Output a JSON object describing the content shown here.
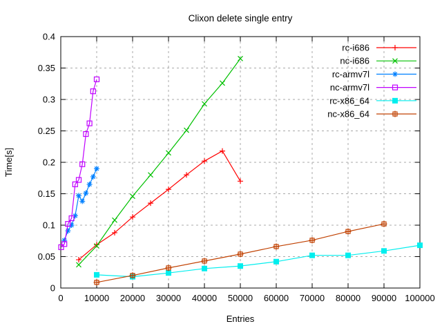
{
  "chart_data": {
    "type": "line",
    "title": "Clixon delete single entry",
    "xlabel": "Entries",
    "ylabel": "Time[s]",
    "xlim": [
      0,
      100000
    ],
    "ylim": [
      0,
      0.4
    ],
    "x_ticks": [
      0,
      10000,
      20000,
      30000,
      40000,
      50000,
      60000,
      70000,
      80000,
      90000,
      100000
    ],
    "y_ticks": [
      0,
      0.05,
      0.1,
      0.15,
      0.2,
      0.25,
      0.3,
      0.35,
      0.4
    ],
    "grid": true,
    "legend_position": "top-right-inside",
    "series": [
      {
        "name": "rc-i686",
        "color": "#ff0000",
        "marker": "plus",
        "x": [
          5000,
          10000,
          15000,
          20000,
          25000,
          30000,
          35000,
          40000,
          45000,
          50000
        ],
        "y": [
          0.045,
          0.069,
          0.088,
          0.113,
          0.135,
          0.157,
          0.18,
          0.202,
          0.218,
          0.17
        ]
      },
      {
        "name": "nc-i686",
        "color": "#00c000",
        "marker": "cross",
        "x": [
          5000,
          10000,
          15000,
          20000,
          25000,
          30000,
          35000,
          40000,
          45000,
          50000
        ],
        "y": [
          0.037,
          0.067,
          0.108,
          0.146,
          0.18,
          0.215,
          0.251,
          0.293,
          0.326,
          0.365
        ]
      },
      {
        "name": "rc-armv7l",
        "color": "#0080ff",
        "marker": "asterisk",
        "x": [
          1000,
          2000,
          3000,
          4000,
          5000,
          6000,
          7000,
          8000,
          9000,
          10000
        ],
        "y": [
          0.076,
          0.091,
          0.1,
          0.115,
          0.147,
          0.138,
          0.151,
          0.165,
          0.177,
          0.19
        ]
      },
      {
        "name": "nc-armv7l",
        "color": "#c000ff",
        "marker": "open-square",
        "x": [
          100,
          1000,
          2000,
          3000,
          4000,
          5000,
          6000,
          7000,
          8000,
          9000,
          10000
        ],
        "y": [
          0.065,
          0.07,
          0.102,
          0.111,
          0.165,
          0.172,
          0.197,
          0.245,
          0.262,
          0.313,
          0.332
        ]
      },
      {
        "name": "rc-x86_64",
        "color": "#00eeee",
        "marker": "filled-square",
        "x": [
          10000,
          20000,
          30000,
          40000,
          50000,
          60000,
          70000,
          80000,
          90000,
          100000
        ],
        "y": [
          0.021,
          0.018,
          0.024,
          0.031,
          0.035,
          0.042,
          0.052,
          0.052,
          0.059,
          0.068
        ]
      },
      {
        "name": "nc-x86_64",
        "color": "#c04000",
        "marker": "crossed-square",
        "x": [
          10000,
          20000,
          30000,
          40000,
          50000,
          60000,
          70000,
          80000,
          90000
        ],
        "y": [
          0.009,
          0.02,
          0.032,
          0.043,
          0.054,
          0.066,
          0.076,
          0.09,
          0.102
        ]
      }
    ]
  }
}
